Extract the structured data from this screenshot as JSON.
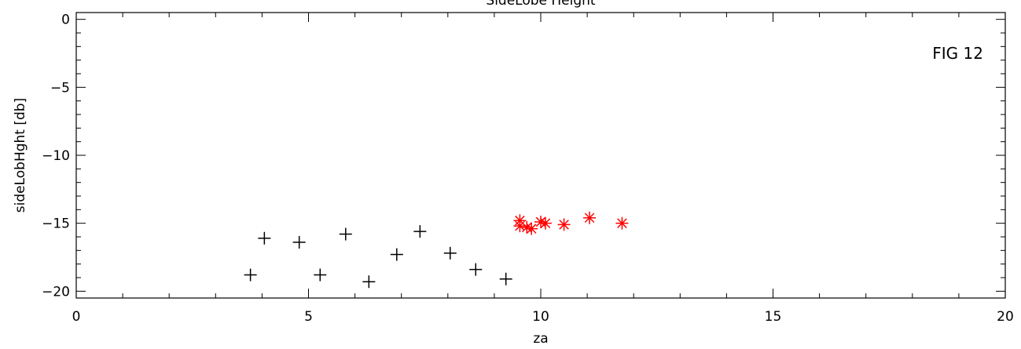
{
  "chart_data": {
    "type": "scatter",
    "title": "SideLobe Height",
    "xlabel": "za",
    "ylabel": "sideLobHght [db]",
    "xlim": [
      0,
      20
    ],
    "ylim": [
      -20.5,
      0.5
    ],
    "x_ticks": [
      "0",
      "5",
      "10",
      "15",
      "20"
    ],
    "y_ticks": [
      "0",
      "−5",
      "−10",
      "−15",
      "−20"
    ],
    "grid": false,
    "annotation": "FIG 12",
    "series": [
      {
        "marker": "plus",
        "color": "#000000",
        "points": [
          [
            3.75,
            -18.8
          ],
          [
            4.05,
            -16.1
          ],
          [
            4.8,
            -16.4
          ],
          [
            5.25,
            -18.8
          ],
          [
            5.8,
            -15.8
          ],
          [
            6.3,
            -19.3
          ],
          [
            6.9,
            -17.3
          ],
          [
            7.4,
            -15.6
          ],
          [
            8.05,
            -17.2
          ],
          [
            8.6,
            -18.4
          ],
          [
            9.25,
            -19.1
          ]
        ]
      },
      {
        "marker": "asterisk",
        "color": "#ff0000",
        "points": [
          [
            9.55,
            -14.8
          ],
          [
            9.55,
            -15.2
          ],
          [
            9.7,
            -15.3
          ],
          [
            9.8,
            -15.4
          ],
          [
            10.0,
            -14.9
          ],
          [
            10.1,
            -15.0
          ],
          [
            10.5,
            -15.1
          ],
          [
            11.05,
            -14.6
          ],
          [
            11.75,
            -15.0
          ]
        ]
      }
    ]
  }
}
